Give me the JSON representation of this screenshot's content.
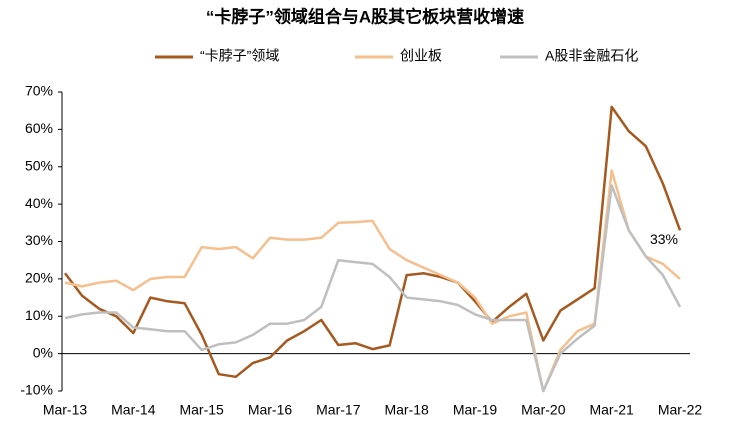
{
  "chart_data": {
    "type": "line",
    "title": "“卡脖子”领域组合与A股其它板块营收增速",
    "categories": [
      "Mar-13",
      null,
      null,
      null,
      "Mar-14",
      null,
      null,
      null,
      "Mar-15",
      null,
      null,
      null,
      "Mar-16",
      null,
      null,
      null,
      "Mar-17",
      null,
      null,
      null,
      "Mar-18",
      null,
      null,
      null,
      "Mar-19",
      null,
      null,
      null,
      "Mar-20",
      null,
      null,
      null,
      "Mar-21",
      null,
      null,
      null,
      "Mar-22"
    ],
    "series": [
      {
        "name": "“卡脖子”领域",
        "color": "#A5591F",
        "values": [
          21.5,
          15.5,
          12,
          10,
          5.5,
          15,
          14,
          13.5,
          5,
          -5.5,
          -6.2,
          -2.5,
          -1,
          3.5,
          6,
          9,
          2.3,
          2.8,
          1.2,
          2.2,
          21,
          21.5,
          20.5,
          19,
          14,
          8.5,
          12.5,
          16,
          3.5,
          11.5,
          14.5,
          17.5,
          66,
          59.5,
          55.5,
          45.5,
          33
        ],
        "value_labels": [
          null,
          null,
          null,
          null,
          null,
          null,
          null,
          null,
          null,
          null,
          null,
          null,
          null,
          null,
          null,
          null,
          null,
          null,
          null,
          null,
          null,
          null,
          null,
          null,
          null,
          null,
          null,
          null,
          null,
          null,
          null,
          null,
          null,
          null,
          null,
          null,
          "33%"
        ],
        "value_label_color": "#E02020"
      },
      {
        "name": "创业板",
        "color": "#F5BF8E",
        "values": [
          19,
          18,
          19,
          19.5,
          17,
          20,
          20.5,
          20.5,
          28.5,
          28,
          28.5,
          25.5,
          31,
          30.5,
          30.5,
          31,
          35,
          35.2,
          35.5,
          28,
          25,
          23,
          21,
          19,
          15,
          8,
          10,
          11,
          -10,
          1,
          6,
          8,
          49,
          33,
          26,
          24,
          20
        ]
      },
      {
        "name": "A股非金融石化",
        "color": "#BFBFBF",
        "values": [
          9.5,
          10.5,
          11,
          11,
          7,
          6.5,
          6,
          6,
          1,
          2.5,
          3,
          5,
          8,
          8,
          9,
          12.5,
          25,
          24.5,
          24,
          20.5,
          15,
          14.5,
          14,
          13,
          10.5,
          9,
          9,
          9,
          -10,
          0,
          4,
          7.5,
          45,
          33,
          26,
          21,
          12.5
        ]
      }
    ],
    "ylim": [
      -10,
      70
    ],
    "yticks": [
      {
        "value": -10,
        "label": "-10%"
      },
      {
        "value": 0,
        "label": "0%"
      },
      {
        "value": 10,
        "label": "10%"
      },
      {
        "value": 20,
        "label": "20%"
      },
      {
        "value": 30,
        "label": "30%"
      },
      {
        "value": 40,
        "label": "40%"
      },
      {
        "value": 50,
        "label": "50%"
      },
      {
        "value": 60,
        "label": "60%"
      },
      {
        "value": 70,
        "label": "70%"
      }
    ],
    "grid": false,
    "legend": "top"
  }
}
